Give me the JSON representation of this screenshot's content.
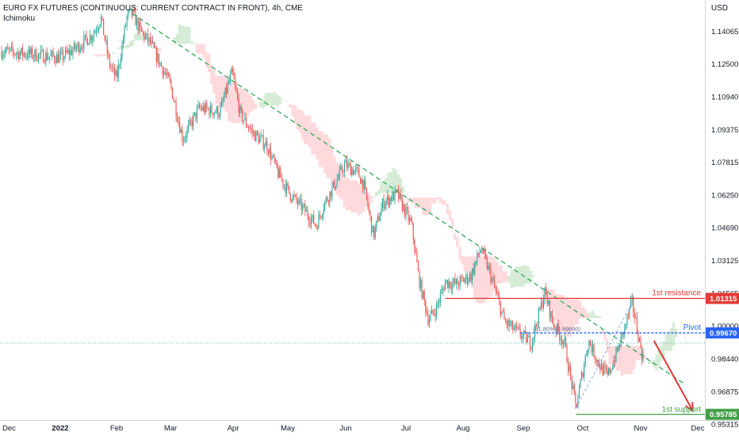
{
  "header": {
    "title": "EURO FX FUTURES (CONTINUOUS: CURRENT CONTRACT IN FRONT), 4h, CME",
    "indicator": "Ichimoku",
    "currency": "USD"
  },
  "colors": {
    "up": "#26a69a",
    "down": "#ef5350",
    "trendline": "#21a34a",
    "resistance": "#e53935",
    "pivot": "#2962ff",
    "support": "#43a047",
    "cloud_bull": "#c8e6c9",
    "cloud_bear": "#ffcdd2",
    "projection": "#e53935",
    "axis_text": "#131722"
  },
  "chart_data": {
    "type": "candlestick",
    "y_axis": {
      "range": [
        0.9475,
        1.1555
      ],
      "ticks": [
        1.14065,
        1.125,
        1.1094,
        1.09375,
        1.07815,
        1.0625,
        1.0469,
        1.03125,
        1.01565,
        1.0,
        0.9844,
        0.96875,
        0.95315
      ],
      "tick_labels": [
        "1.14065",
        "1.12500",
        "1.10940",
        "1.09375",
        "1.07815",
        "1.06250",
        "1.04690",
        "1.03125",
        "1.01565",
        "1.00000",
        "0.98440",
        "0.96875",
        "0.95315"
      ]
    },
    "x_axis": {
      "labels": [
        "Dec",
        "2022",
        "Feb",
        "Mar",
        "Apr",
        "May",
        "Jun",
        "Jul",
        "Aug",
        "Sep",
        "Oct",
        "Nov",
        "Dec"
      ],
      "bold_label": "2022"
    },
    "price_path": [
      [
        "Dec",
        1.131
      ],
      [
        "Jan 5",
        1.128
      ],
      [
        "Jan 14",
        1.134
      ],
      [
        "Jan 20",
        1.139
      ],
      [
        "Jan 24",
        1.147
      ],
      [
        "Jan 28",
        1.125
      ],
      [
        "Feb 1",
        1.118
      ],
      [
        "Feb 7",
        1.148
      ],
      [
        "Feb 10",
        1.149
      ],
      [
        "Feb 15",
        1.14
      ],
      [
        "Feb 20",
        1.135
      ],
      [
        "Mar 1",
        1.115
      ],
      [
        "Mar 7",
        1.089
      ],
      [
        "Mar 15",
        1.104
      ],
      [
        "Mar 25",
        1.102
      ],
      [
        "Mar 31",
        1.121
      ],
      [
        "Apr 5",
        1.101
      ],
      [
        "Apr 12",
        1.092
      ],
      [
        "Apr 20",
        1.086
      ],
      [
        "Apr 26",
        1.073
      ],
      [
        "May 2",
        1.063
      ],
      [
        "May 10",
        1.055
      ],
      [
        "May 16",
        1.048
      ],
      [
        "May 20",
        1.058
      ],
      [
        "May 26",
        1.068
      ],
      [
        "May 31",
        1.077
      ],
      [
        "Jun 7",
        1.073
      ],
      [
        "Jun 10",
        1.068
      ],
      [
        "Jun 15",
        1.043
      ],
      [
        "Jun 20",
        1.059
      ],
      [
        "Jun 27",
        1.063
      ],
      [
        "Jul 4",
        1.048
      ],
      [
        "Jul 8",
        1.022
      ],
      [
        "Jul 13",
        1.003
      ],
      [
        "Jul 17",
        1.008
      ],
      [
        "Jul 22",
        1.021
      ],
      [
        "Jul 28",
        1.02
      ],
      [
        "Aug 5",
        1.024
      ],
      [
        "Aug 10",
        1.037
      ],
      [
        "Aug 15",
        1.024
      ],
      [
        "Aug 22",
        1.002
      ],
      [
        "Aug 30",
        0.996
      ],
      [
        "Sep 5",
        0.992
      ],
      [
        "Sep 12",
        1.016
      ],
      [
        "Sep 16",
        1.002
      ],
      [
        "Sep 22",
        0.992
      ],
      [
        "Sep 28",
        0.961
      ],
      [
        "Oct 4",
        0.993
      ],
      [
        "Oct 10",
        0.981
      ],
      [
        "Oct 14",
        0.976
      ],
      [
        "Oct 20",
        0.99
      ],
      [
        "Oct 27",
        1.011
      ],
      [
        "Oct 31",
        0.992
      ],
      [
        "Nov 2",
        0.985
      ]
    ],
    "trendline": {
      "from": [
        "Feb 10",
        1.149
      ],
      "to": [
        "Nov 25",
        0.972
      ],
      "style": "dashed"
    },
    "levels": [
      {
        "name": "1st resistance",
        "value": 1.01315,
        "label": "1.01315"
      },
      {
        "name": "Pivot",
        "value": 0.9967,
        "label": "0.99670",
        "fib_text": "(61.80%(0.99600)"
      },
      {
        "name": "1st support",
        "value": 0.95785,
        "label": "0.95785"
      }
    ],
    "current_price": 0.9918,
    "projection": {
      "from": [
        "Nov 3",
        0.9945
      ],
      "to": [
        "Nov 28",
        0.9595
      ]
    },
    "grid": false,
    "legend": "none"
  }
}
